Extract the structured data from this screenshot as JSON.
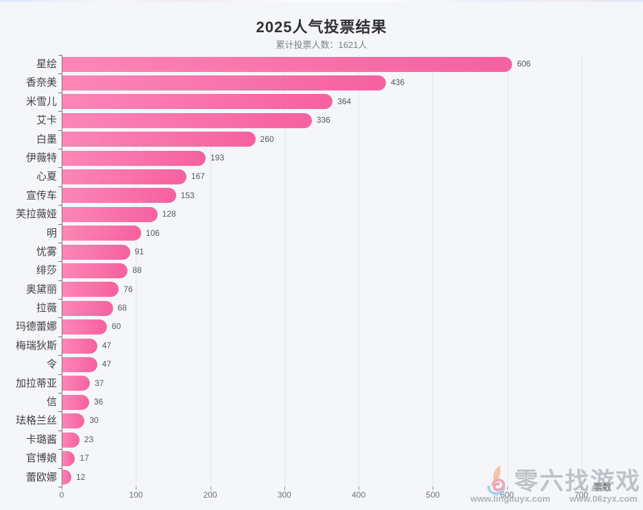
{
  "page": {
    "background": "#f5f6f9"
  },
  "header": {
    "title": "2025人气投票结果",
    "subtitle": "累计投票人数：1621人"
  },
  "chart_data": {
    "type": "bar",
    "orientation": "horizontal",
    "title": "2025人气投票结果",
    "subtitle": "累计投票人数：1621人",
    "xlabel": "票数",
    "ylabel": "",
    "xlim": [
      0,
      700
    ],
    "x_ticks": [
      0,
      100,
      200,
      300,
      400,
      500,
      600,
      700
    ],
    "grid": true,
    "legend": "none",
    "categories": [
      "星绘",
      "香奈美",
      "米雪儿",
      "艾卡",
      "白墨",
      "伊薇特",
      "心夏",
      "宣传车",
      "芙拉薇娅",
      "明",
      "忧雾",
      "绯莎",
      "奥黛丽",
      "拉薇",
      "玛德蕾娜",
      "梅瑞狄斯",
      "令",
      "加拉蒂亚",
      "信",
      "珐格兰丝",
      "卡璐酱",
      "官博娘",
      "蕾欧娜"
    ],
    "values": [
      606,
      436,
      364,
      336,
      260,
      193,
      167,
      153,
      128,
      106,
      91,
      88,
      76,
      68,
      60,
      47,
      47,
      37,
      36,
      30,
      23,
      17,
      12
    ],
    "bar_gradient_start": "#fc86b7",
    "bar_gradient_end": "#f6619f"
  },
  "watermark": {
    "brand": "零六找游戏",
    "url1": "www.lingliuyx.com",
    "url2": "www.06zyx.com"
  }
}
